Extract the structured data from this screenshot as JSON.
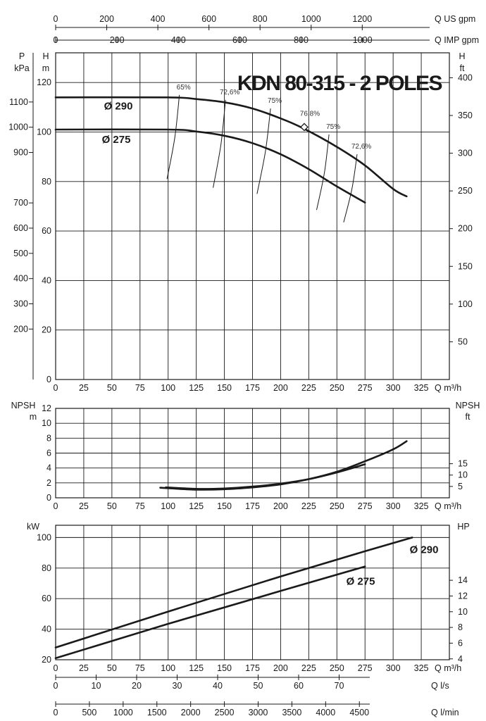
{
  "title": "KDN 80-315 - 2 POLES",
  "chart_data": [
    {
      "type": "line",
      "name": "head",
      "x_unit": "Q m³/h",
      "xlim": [
        0,
        350
      ],
      "x_ticks": [
        0,
        25,
        50,
        75,
        100,
        125,
        150,
        175,
        200,
        225,
        250,
        275,
        300,
        325
      ],
      "left_axis_h": {
        "label": "H",
        "unit": "m",
        "ylim": [
          0,
          132
        ],
        "ticks": [
          0,
          20,
          40,
          60,
          80,
          100,
          120
        ]
      },
      "left_axis_p": {
        "label": "P",
        "unit": "kPa",
        "ticks": [
          200,
          300,
          400,
          500,
          600,
          700,
          900,
          1000,
          1100
        ]
      },
      "right_axis": {
        "label": "H",
        "unit": "ft",
        "ticks": [
          50,
          100,
          150,
          200,
          250,
          300,
          350,
          400
        ]
      },
      "top_axis_us": {
        "unit": "Q US gpm",
        "ticks": [
          0,
          200,
          400,
          600,
          800,
          1000,
          1200
        ]
      },
      "top_axis_imp": {
        "unit": "Q IMP gpm",
        "ticks": [
          0,
          200,
          400,
          600,
          800,
          1000
        ]
      },
      "series": [
        {
          "name": "Ø 290",
          "x": [
            0,
            100,
            125,
            150,
            175,
            200,
            220,
            250,
            275,
            300,
            312
          ],
          "y": [
            114,
            114,
            113.3,
            112,
            109.5,
            105.5,
            101.5,
            94,
            86.5,
            77,
            74
          ]
        },
        {
          "name": "Ø 275",
          "x": [
            0,
            100,
            125,
            150,
            175,
            200,
            225,
            250,
            275
          ],
          "y": [
            101,
            101,
            100.2,
            98.5,
            95.5,
            91,
            85,
            78,
            71.5
          ]
        }
      ],
      "efficiency_lines": [
        {
          "label": "65%",
          "x": [
            99,
            110
          ],
          "y": [
            81,
            115
          ]
        },
        {
          "label": "72,6%",
          "x": [
            140,
            151
          ],
          "y": [
            77.5,
            113
          ]
        },
        {
          "label": "75%",
          "x": [
            179,
            191
          ],
          "y": [
            75,
            109.5
          ]
        },
        {
          "label": "76,8%",
          "x": [
            221,
            221
          ],
          "y": [
            102,
            102
          ]
        },
        {
          "label": "75%",
          "x": [
            232,
            243
          ],
          "y": [
            68.5,
            99
          ]
        },
        {
          "label": "72,6%",
          "x": [
            256,
            268
          ],
          "y": [
            63.5,
            91
          ]
        }
      ],
      "bep_point": {
        "x": 221,
        "y": 102
      }
    },
    {
      "type": "line",
      "name": "npsh",
      "x_unit": "Q m³/h",
      "xlim": [
        0,
        350
      ],
      "x_ticks": [
        0,
        25,
        50,
        75,
        100,
        125,
        150,
        175,
        200,
        225,
        250,
        275,
        300,
        325
      ],
      "left_axis": {
        "label": "NPSH",
        "unit": "m",
        "ylim": [
          0,
          12
        ],
        "ticks": [
          0,
          2,
          4,
          6,
          8,
          10,
          12
        ]
      },
      "right_axis": {
        "label": "NPSH",
        "unit": "ft",
        "ticks": [
          5,
          10,
          15
        ]
      },
      "series": [
        {
          "name": "Ø 290",
          "x": [
            93,
            125,
            150,
            175,
            200,
            225,
            250,
            275,
            300,
            312
          ],
          "y": [
            1.35,
            1.1,
            1.15,
            1.4,
            1.8,
            2.5,
            3.5,
            4.9,
            6.5,
            7.6
          ]
        },
        {
          "name": "Ø 275",
          "x": [
            98,
            125,
            150,
            175,
            200,
            225,
            250,
            275
          ],
          "y": [
            1.4,
            1.2,
            1.25,
            1.5,
            1.9,
            2.5,
            3.4,
            4.5
          ]
        }
      ]
    },
    {
      "type": "line",
      "name": "power",
      "x_unit": "Q m³/h",
      "xlim": [
        0,
        350
      ],
      "x_ticks": [
        0,
        25,
        50,
        75,
        100,
        125,
        150,
        175,
        200,
        225,
        250,
        275,
        300,
        325
      ],
      "left_axis": {
        "label": "kW",
        "ylim": [
          20,
          108
        ],
        "ticks": [
          20,
          40,
          60,
          80,
          100
        ]
      },
      "right_axis": {
        "label": "HP",
        "ticks": [
          4,
          6,
          8,
          10,
          12,
          14
        ]
      },
      "bottom_axis_ls": {
        "unit": "Q l/s",
        "ticks": [
          0,
          10,
          20,
          30,
          40,
          50,
          60,
          70
        ]
      },
      "bottom_axis_lmin": {
        "unit": "Q l/min",
        "ticks": [
          0,
          500,
          1000,
          1500,
          2000,
          2500,
          3000,
          3500,
          4000,
          4500
        ]
      },
      "series": [
        {
          "name": "Ø 290",
          "x": [
            0,
            100,
            200,
            275,
            317
          ],
          "y": [
            28,
            51.5,
            74.5,
            91,
            100
          ]
        },
        {
          "name": "Ø 275",
          "x": [
            0,
            100,
            200,
            275
          ],
          "y": [
            21,
            43.5,
            65,
            81
          ]
        }
      ]
    }
  ]
}
